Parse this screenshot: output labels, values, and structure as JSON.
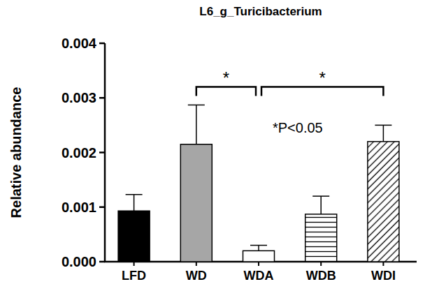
{
  "chart_data": {
    "type": "bar",
    "title": "L6_g_Turicibacterium",
    "y_label": "Relative abundance",
    "categories": [
      "LFD",
      "WD",
      "WDA",
      "WDB",
      "WDI"
    ],
    "values": [
      0.00093,
      0.00215,
      0.0002,
      0.00087,
      0.0022
    ],
    "errors": [
      0.0003,
      0.00072,
      0.0001,
      0.00033,
      0.0003
    ],
    "colors": [
      "#000000",
      "#a6a6a6",
      "#ffffff",
      "#ffffff",
      "#ffffff"
    ],
    "ylim": [
      0,
      0.004
    ],
    "yticks": [
      {
        "value": 0,
        "label": "0.000"
      },
      {
        "value": 0.001,
        "label": "0.001"
      },
      {
        "value": 0.002,
        "label": "0.002"
      },
      {
        "value": 0.003,
        "label": "0.003"
      },
      {
        "value": 0.004,
        "label": "0.004"
      }
    ],
    "grid": false,
    "annotations": [
      {
        "text": "*P<0.05"
      }
    ],
    "significance": [
      {
        "pair": [
          "WD",
          "WDA"
        ],
        "label": "*"
      },
      {
        "pair": [
          "WDA",
          "WDI"
        ],
        "label": "*"
      }
    ]
  }
}
